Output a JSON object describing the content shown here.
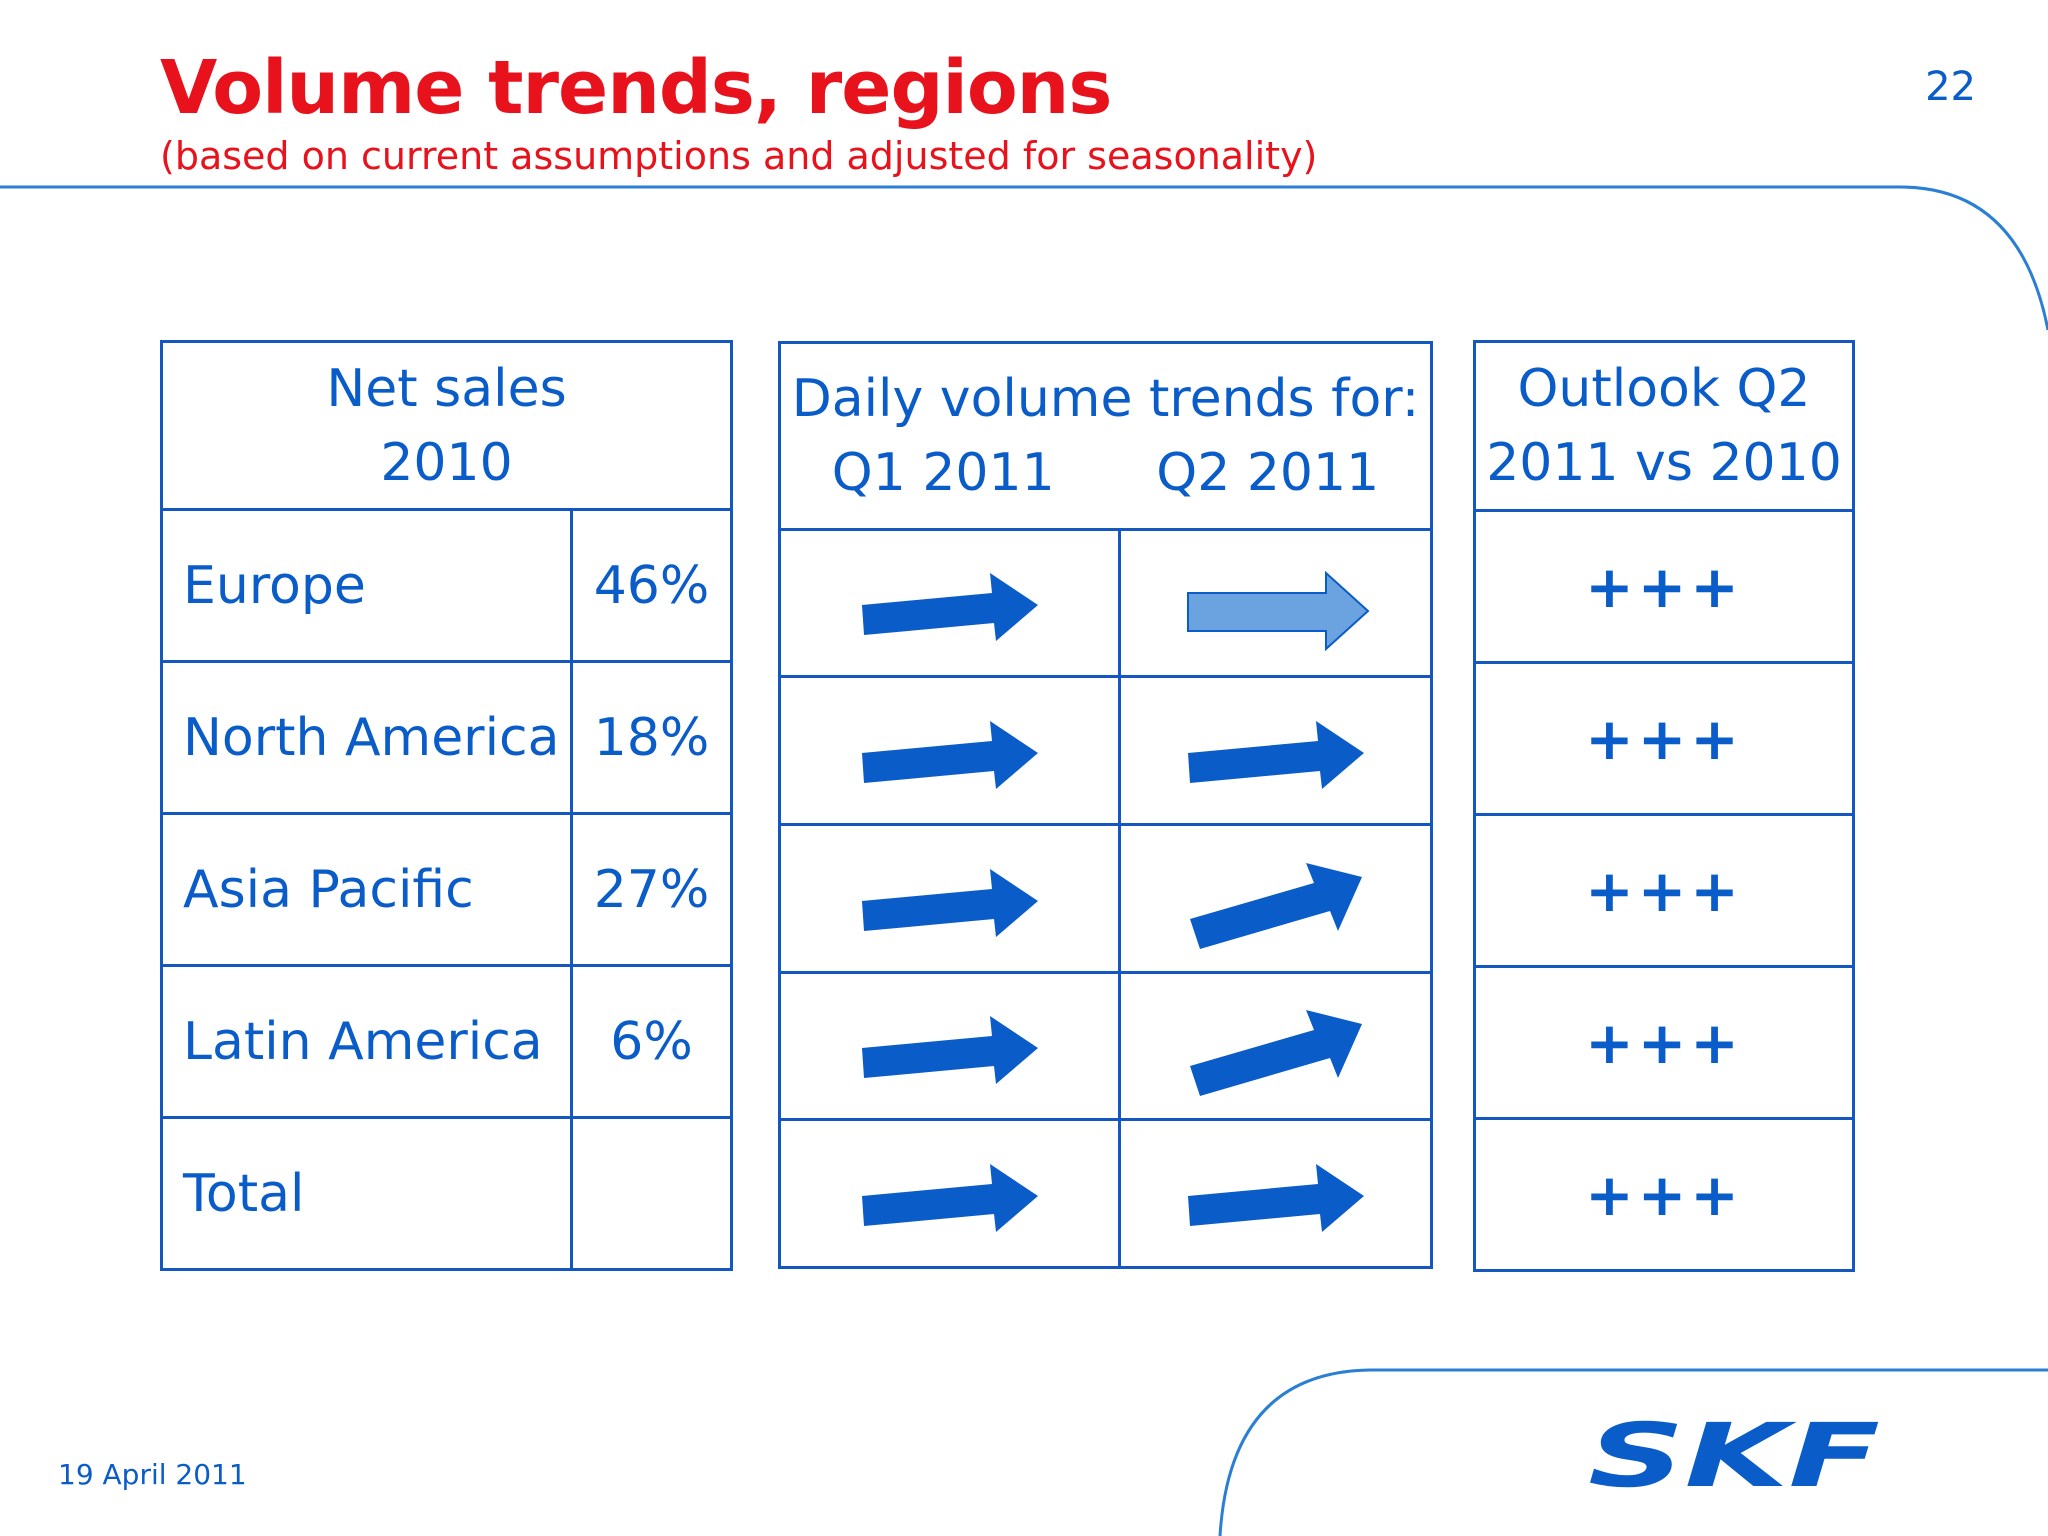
{
  "header": {
    "title": "Volume trends, regions",
    "subtitle": "(based on current assumptions and adjusted for seasonality)",
    "page_number": "22"
  },
  "sales_table": {
    "header_line1": "Net sales",
    "header_line2": "2010",
    "rows": [
      {
        "region": "Europe",
        "share": "46%"
      },
      {
        "region": "North America",
        "share": "18%"
      },
      {
        "region": "Asia Pacific",
        "share": "27%"
      },
      {
        "region": "Latin America",
        "share": "6%"
      },
      {
        "region": "Total",
        "share": ""
      }
    ]
  },
  "trend_table": {
    "header_line1": "Daily volume trends for:",
    "col1": "Q1 2011",
    "col2": "Q2 2011",
    "rows": [
      {
        "q1": "flat-arrow",
        "q2": "flat-arrow-light"
      },
      {
        "q1": "flat-arrow",
        "q2": "flat-arrow"
      },
      {
        "q1": "flat-arrow",
        "q2": "up-arrow"
      },
      {
        "q1": "flat-arrow",
        "q2": "up-arrow"
      },
      {
        "q1": "flat-arrow",
        "q2": "flat-arrow"
      }
    ]
  },
  "outlook_table": {
    "header_line1": "Outlook Q2",
    "header_line2": "2011 vs 2010",
    "rows": [
      "+++",
      "+++",
      "+++",
      "+++",
      "+++"
    ]
  },
  "footer": {
    "date": "19 April 2011",
    "logo_text": "SKF"
  },
  "colors": {
    "title": "#e8121c",
    "text": "#0a5cc8",
    "arrow": "#0a5cc8",
    "arrow_light": "#6aa3e0"
  }
}
